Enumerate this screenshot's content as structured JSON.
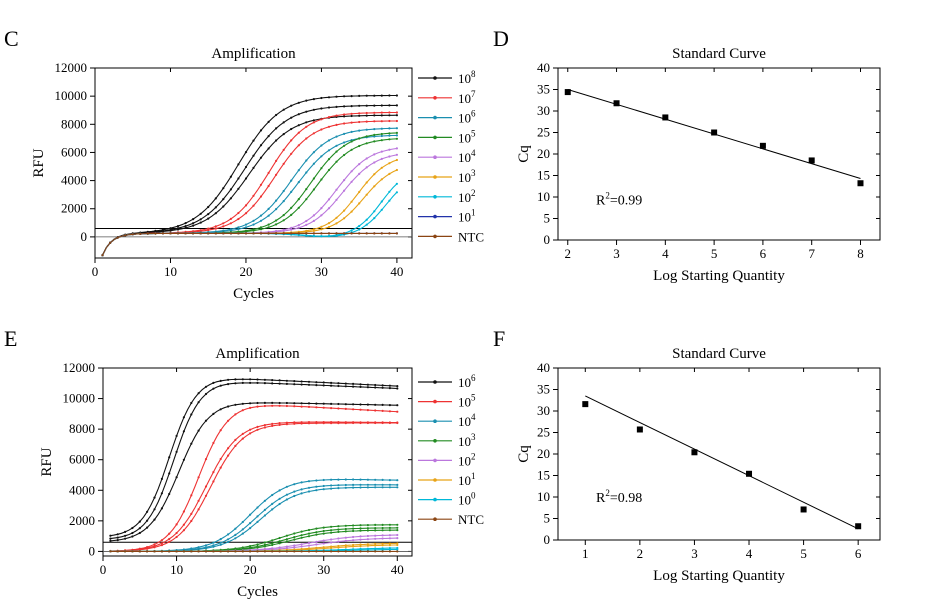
{
  "chart_data": [
    {
      "panel": "C",
      "type": "line",
      "title": "Amplification",
      "xlabel": "Cycles",
      "ylabel": "RFU",
      "xlim": [
        0,
        42
      ],
      "ylim": [
        -1500,
        12000
      ],
      "xticks": [
        0,
        10,
        20,
        30,
        40
      ],
      "yticks": [
        0,
        2000,
        4000,
        6000,
        8000,
        10000,
        12000
      ],
      "threshold": 600,
      "legend_position": "right",
      "series": [
        {
          "name": "10",
          "sup": "8",
          "color": "#111111",
          "variants": [
            {
              "cq": 17.0,
              "plateau": 9800,
              "k": 0.36
            },
            {
              "cq": 17.8,
              "plateau": 9100,
              "k": 0.36
            },
            {
              "cq": 18.4,
              "plateau": 8400,
              "k": 0.36
            }
          ]
        },
        {
          "name": "10",
          "sup": "7",
          "color": "#ee3333",
          "variants": [
            {
              "cq": 21.0,
              "plateau": 8600,
              "k": 0.4
            },
            {
              "cq": 21.8,
              "plateau": 8000,
              "k": 0.4
            }
          ]
        },
        {
          "name": "10",
          "sup": "6",
          "color": "#1a8fb0",
          "variants": [
            {
              "cq": 24.0,
              "plateau": 7500,
              "k": 0.4
            },
            {
              "cq": 24.8,
              "plateau": 7000,
              "k": 0.4
            }
          ]
        },
        {
          "name": "10",
          "sup": "5",
          "color": "#228b22",
          "variants": [
            {
              "cq": 26.6,
              "plateau": 7200,
              "k": 0.42
            },
            {
              "cq": 27.4,
              "plateau": 6800,
              "k": 0.42
            }
          ]
        },
        {
          "name": "10",
          "sup": "4",
          "color": "#bb77dd",
          "variants": [
            {
              "cq": 30.0,
              "plateau": 6200,
              "k": 0.45
            },
            {
              "cq": 30.8,
              "plateau": 5800,
              "k": 0.45
            }
          ]
        },
        {
          "name": "10",
          "sup": "3",
          "color": "#e8a317",
          "variants": [
            {
              "cq": 32.8,
              "plateau": 5600,
              "k": 0.5
            },
            {
              "cq": 33.6,
              "plateau": 5000,
              "k": 0.5
            }
          ]
        },
        {
          "name": "10",
          "sup": "2",
          "color": "#00b8d8",
          "variants": [
            {
              "cq": 36.0,
              "plateau": 4600,
              "k": 0.6,
              "dip": -250
            },
            {
              "cq": 36.6,
              "plateau": 4200,
              "k": 0.6,
              "dip": -250
            }
          ]
        },
        {
          "name": "10",
          "sup": "1",
          "color": "#2233aa",
          "variants": [
            {
              "cq": 60,
              "plateau": 0,
              "k": 0.5
            }
          ]
        },
        {
          "name": "NTC",
          "sup": "",
          "color": "#8b4513",
          "variants": [
            {
              "cq": 60,
              "plateau": 0,
              "k": 0.5
            }
          ]
        }
      ]
    },
    {
      "panel": "D",
      "type": "scatter",
      "title": "Standard Curve",
      "xlabel": "Log Starting Quantity",
      "ylabel": "Cq",
      "xlim": [
        1.8,
        8.4
      ],
      "ylim": [
        0,
        40
      ],
      "xticks": [
        2,
        3,
        4,
        5,
        6,
        7,
        8
      ],
      "yticks": [
        0,
        5,
        10,
        15,
        20,
        25,
        30,
        35,
        40
      ],
      "points": [
        {
          "x": 2,
          "y": 34.4
        },
        {
          "x": 3,
          "y": 31.8
        },
        {
          "x": 4,
          "y": 28.5
        },
        {
          "x": 5,
          "y": 25.0
        },
        {
          "x": 6,
          "y": 21.9
        },
        {
          "x": 7,
          "y": 18.5
        },
        {
          "x": 8,
          "y": 13.2
        }
      ],
      "fit": {
        "x": [
          2,
          8
        ],
        "y": [
          35.0,
          14.3
        ]
      },
      "r2_label": "R",
      "r2_sup": "2",
      "r2_value": "=0.99"
    },
    {
      "panel": "E",
      "type": "line",
      "title": "Amplification",
      "xlabel": "Cycles",
      "ylabel": "RFU",
      "xlim": [
        0,
        42
      ],
      "ylim": [
        -300,
        12000
      ],
      "xticks": [
        0,
        10,
        20,
        30,
        40
      ],
      "yticks": [
        0,
        2000,
        4000,
        6000,
        8000,
        10000,
        12000
      ],
      "threshold": 600,
      "legend_position": "right",
      "series": [
        {
          "name": "10",
          "sup": "6",
          "color": "#111111",
          "variants": [
            {
              "cq": 7.0,
              "plateau": 10500,
              "k": 0.55,
              "base": 900,
              "decline": 700
            },
            {
              "cq": 7.6,
              "plateau": 10400,
              "k": 0.55,
              "base": 750,
              "decline": 600
            },
            {
              "cq": 8.3,
              "plateau": 9200,
              "k": 0.5,
              "base": 600,
              "decline": 300
            }
          ]
        },
        {
          "name": "10",
          "sup": "5",
          "color": "#ee3333",
          "variants": [
            {
              "cq": 11.0,
              "plateau": 9700,
              "k": 0.5,
              "decline": 800
            },
            {
              "cq": 12.0,
              "plateau": 8500,
              "k": 0.45,
              "decline": 100
            },
            {
              "cq": 12.6,
              "plateau": 8400,
              "k": 0.45,
              "decline": 0
            }
          ]
        },
        {
          "name": "10",
          "sup": "4",
          "color": "#1a8fb0",
          "variants": [
            {
              "cq": 18.0,
              "plateau": 4800,
              "k": 0.4,
              "decline": 300
            },
            {
              "cq": 18.8,
              "plateau": 4400,
              "k": 0.4,
              "decline": 100
            },
            {
              "cq": 19.4,
              "plateau": 4200,
              "k": 0.4,
              "decline": 0
            }
          ]
        },
        {
          "name": "10",
          "sup": "3",
          "color": "#228b22",
          "variants": [
            {
              "cq": 22.0,
              "plateau": 1750,
              "k": 0.35
            },
            {
              "cq": 22.8,
              "plateau": 1550,
              "k": 0.35
            },
            {
              "cq": 23.4,
              "plateau": 1400,
              "k": 0.35
            }
          ]
        },
        {
          "name": "10",
          "sup": "2",
          "color": "#bb77dd",
          "variants": [
            {
              "cq": 26.0,
              "plateau": 1100,
              "k": 0.3
            },
            {
              "cq": 27.0,
              "plateau": 900,
              "k": 0.3
            }
          ]
        },
        {
          "name": "10",
          "sup": "1",
          "color": "#e8a317",
          "variants": [
            {
              "cq": 28.0,
              "plateau": 550,
              "k": 0.3
            },
            {
              "cq": 29.0,
              "plateau": 450,
              "k": 0.3
            }
          ]
        },
        {
          "name": "10",
          "sup": "0",
          "color": "#00b8d8",
          "variants": [
            {
              "cq": 31.0,
              "plateau": 250,
              "k": 0.3
            },
            {
              "cq": 32.0,
              "plateau": 150,
              "k": 0.3
            }
          ]
        },
        {
          "name": "NTC",
          "sup": "",
          "color": "#8b4513",
          "variants": [
            {
              "cq": 60,
              "plateau": 0,
              "k": 0.5
            }
          ]
        }
      ]
    },
    {
      "panel": "F",
      "type": "scatter",
      "title": "Standard Curve",
      "xlabel": "Log Starting Quantity",
      "ylabel": "Cq",
      "xlim": [
        0.5,
        6.4
      ],
      "ylim": [
        0,
        40
      ],
      "xticks": [
        1,
        2,
        3,
        4,
        5,
        6
      ],
      "yticks": [
        0,
        5,
        10,
        15,
        20,
        25,
        30,
        35,
        40
      ],
      "points": [
        {
          "x": 1,
          "y": 31.6
        },
        {
          "x": 2,
          "y": 25.7
        },
        {
          "x": 3,
          "y": 20.4
        },
        {
          "x": 4,
          "y": 15.4
        },
        {
          "x": 5,
          "y": 7.1
        },
        {
          "x": 6,
          "y": 3.2
        }
      ],
      "fit": {
        "x": [
          1,
          6
        ],
        "y": [
          33.5,
          2.6
        ]
      },
      "r2_label": "R",
      "r2_sup": "2",
      "r2_value": "=0.98"
    }
  ]
}
